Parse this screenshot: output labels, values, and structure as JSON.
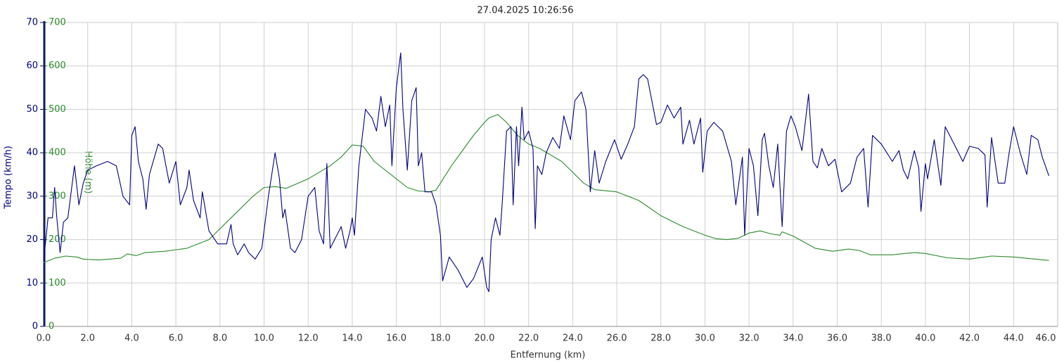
{
  "chart_data": {
    "type": "line",
    "title": "27.04.2025 10:26:56",
    "xlabel": "Entfernung (km)",
    "ylabel": "Tempo (km/h)",
    "y2label": "Höhe (m)",
    "xlim": [
      0,
      46
    ],
    "xticks": [
      {
        "value": 0,
        "label": "0.0"
      },
      {
        "value": 2,
        "label": "2.0"
      },
      {
        "value": 4,
        "label": "4.0"
      },
      {
        "value": 6,
        "label": "6.0"
      },
      {
        "value": 8,
        "label": "8.0"
      },
      {
        "value": 10,
        "label": "10.0"
      },
      {
        "value": 12,
        "label": "12.0"
      },
      {
        "value": 14,
        "label": "14.0"
      },
      {
        "value": 16,
        "label": "16.0"
      },
      {
        "value": 18,
        "label": "18.0"
      },
      {
        "value": 20,
        "label": "20.0"
      },
      {
        "value": 22,
        "label": "22.0"
      },
      {
        "value": 24,
        "label": "24.0"
      },
      {
        "value": 26,
        "label": "26.0"
      },
      {
        "value": 28,
        "label": "28.0"
      },
      {
        "value": 30,
        "label": "30.0"
      },
      {
        "value": 32,
        "label": "32.0"
      },
      {
        "value": 34,
        "label": "34.0"
      },
      {
        "value": 36,
        "label": "36.0"
      },
      {
        "value": 38,
        "label": "38.0"
      },
      {
        "value": 40,
        "label": "40.0"
      },
      {
        "value": 42,
        "label": "42.0"
      },
      {
        "value": 44,
        "label": "44.0"
      },
      {
        "value": 46,
        "label": "46.0"
      }
    ],
    "ylim": [
      0,
      70
    ],
    "yticks": [
      0,
      10,
      20,
      30,
      40,
      50,
      60,
      70
    ],
    "y2lim": [
      0,
      700
    ],
    "y2ticks": [
      0,
      100,
      200,
      300,
      400,
      500,
      600,
      700
    ],
    "grid": true,
    "series": [
      {
        "color": "#000080",
        "x": [
          0,
          0.2,
          0.4,
          0.5,
          0.6,
          0.75,
          0.9,
          1.1,
          1.4,
          1.6,
          1.8,
          2,
          2.4,
          2.9,
          3.3,
          3.6,
          3.9,
          4,
          4.15,
          4.3,
          4.5,
          4.65,
          4.8,
          5.2,
          5.4,
          5.7,
          6,
          6.2,
          6.5,
          6.6,
          6.8,
          7.1,
          7.2,
          7.5,
          7.9,
          8.3,
          8.5,
          8.6,
          8.8,
          9.1,
          9.3,
          9.6,
          9.9,
          10.2,
          10.5,
          10.7,
          10.85,
          10.95,
          11.2,
          11.4,
          11.7,
          12,
          12.3,
          12.5,
          12.7,
          12.85,
          13,
          13.2,
          13.5,
          13.7,
          13.9,
          14,
          14.1,
          14.3,
          14.6,
          14.9,
          15.1,
          15.3,
          15.5,
          15.7,
          15.8,
          16,
          16.2,
          16.3,
          16.5,
          16.7,
          16.9,
          17,
          17.15,
          17.3,
          17.6,
          17.8,
          18,
          18.1,
          18.4,
          18.8,
          19.2,
          19.5,
          19.9,
          20.1,
          20.2,
          20.3,
          20.5,
          20.7,
          20.8,
          21,
          21.2,
          21.3,
          21.45,
          21.55,
          21.7,
          21.8,
          22,
          22.2,
          22.3,
          22.4,
          22.6,
          22.8,
          23.1,
          23.4,
          23.6,
          23.9,
          24.1,
          24.4,
          24.6,
          24.8,
          25,
          25.2,
          25.5,
          25.9,
          26.2,
          26.5,
          26.8,
          27,
          27.2,
          27.4,
          27.8,
          28,
          28.3,
          28.6,
          28.9,
          29,
          29.3,
          29.5,
          29.8,
          29.9,
          30.1,
          30.4,
          30.8,
          31.2,
          31.4,
          31.7,
          31.8,
          32,
          32.2,
          32.4,
          32.6,
          32.7,
          32.9,
          33.1,
          33.3,
          33.5,
          33.7,
          33.9,
          34.1,
          34.4,
          34.7,
          34.9,
          35.1,
          35.3,
          35.6,
          35.9,
          36.2,
          36.6,
          36.9,
          37.2,
          37.4,
          37.6,
          38,
          38.5,
          38.8,
          39,
          39.2,
          39.5,
          39.7,
          39.8,
          40,
          40.1,
          40.4,
          40.7,
          40.9,
          41.3,
          41.7,
          42,
          42.4,
          42.7,
          42.8,
          43,
          43.3,
          43.6,
          43.8,
          44,
          44.3,
          44.6,
          44.8,
          45.1,
          45.3,
          45.6
        ],
        "values": [
          15,
          25,
          25,
          32,
          25,
          17,
          24,
          25,
          37,
          28,
          33,
          36,
          37,
          38,
          37,
          30,
          28,
          44,
          46,
          38,
          34,
          27,
          35,
          42,
          41,
          33,
          38,
          28,
          32,
          36,
          29,
          25,
          31,
          22,
          19,
          19,
          23.5,
          19,
          16.5,
          19,
          17,
          15.5,
          18,
          30,
          40,
          34,
          25,
          27,
          18,
          17,
          20,
          30,
          32,
          22,
          19,
          37.5,
          18,
          20,
          23,
          18,
          22,
          25,
          21,
          37,
          50,
          48,
          45,
          53,
          46,
          51,
          37,
          55,
          63,
          50,
          36,
          52,
          55,
          37,
          40,
          31,
          31,
          28,
          21,
          10.5,
          16,
          13,
          9,
          11,
          16,
          9,
          8,
          20,
          25,
          21,
          28,
          45,
          46,
          28,
          46,
          37,
          50.5,
          43,
          45,
          41,
          22.5,
          37,
          35,
          40,
          43.5,
          41,
          48.5,
          43,
          52,
          54,
          50,
          31,
          40.5,
          33,
          38,
          43,
          38.5,
          42,
          46,
          57,
          58,
          57,
          46.5,
          47,
          51,
          48,
          50.5,
          42,
          47.5,
          42,
          48,
          35.5,
          45,
          47,
          45,
          38,
          28,
          39,
          21,
          41,
          37,
          25.5,
          43,
          44.5,
          37,
          32,
          42,
          23,
          45,
          48.5,
          46,
          40.5,
          53.5,
          38,
          36.5,
          41,
          37,
          38.5,
          31,
          33,
          39,
          41,
          27.5,
          44,
          42,
          38,
          40.5,
          36,
          34,
          40.5,
          36.5,
          26.5,
          37.5,
          34,
          43,
          32.5,
          46,
          42,
          38,
          41.5,
          41,
          39.5,
          27.5,
          43.5,
          33,
          33,
          40,
          46,
          40,
          35,
          44,
          43,
          39,
          34.7
        ]
      },
      {
        "color": "#2a8a2a",
        "axis": "y2",
        "x": [
          0,
          0.5,
          1,
          1.5,
          1.8,
          2.5,
          3.5,
          3.8,
          4.2,
          4.6,
          5.5,
          6.5,
          7.5,
          8.5,
          9.5,
          10,
          10.5,
          11,
          12,
          13,
          13.5,
          14,
          14.5,
          15,
          16,
          16.5,
          17,
          17.5,
          17.8,
          18.5,
          19.5,
          20,
          20.2,
          20.6,
          21,
          21.5,
          22,
          22.5,
          23.5,
          24.5,
          25,
          26,
          27,
          28,
          29,
          30,
          30.5,
          31,
          31.5,
          32,
          32.5,
          33,
          33.4,
          33.5,
          34,
          35,
          35.8,
          36.5,
          37,
          37.5,
          38.5,
          39.5,
          40,
          41,
          42,
          43,
          44,
          45.6
        ],
        "values": [
          147,
          157,
          162,
          160,
          155,
          153,
          157,
          167,
          163,
          170,
          173,
          180,
          200,
          250,
          300,
          320,
          322,
          318,
          340,
          370,
          390,
          418,
          415,
          380,
          340,
          320,
          312,
          310,
          314,
          370,
          440,
          470,
          480,
          488,
          470,
          440,
          420,
          410,
          380,
          330,
          315,
          310,
          290,
          255,
          230,
          210,
          202,
          200,
          203,
          215,
          220,
          213,
          210,
          218,
          208,
          180,
          173,
          178,
          175,
          165,
          165,
          170,
          168,
          158,
          155,
          162,
          160,
          152
        ]
      }
    ]
  }
}
